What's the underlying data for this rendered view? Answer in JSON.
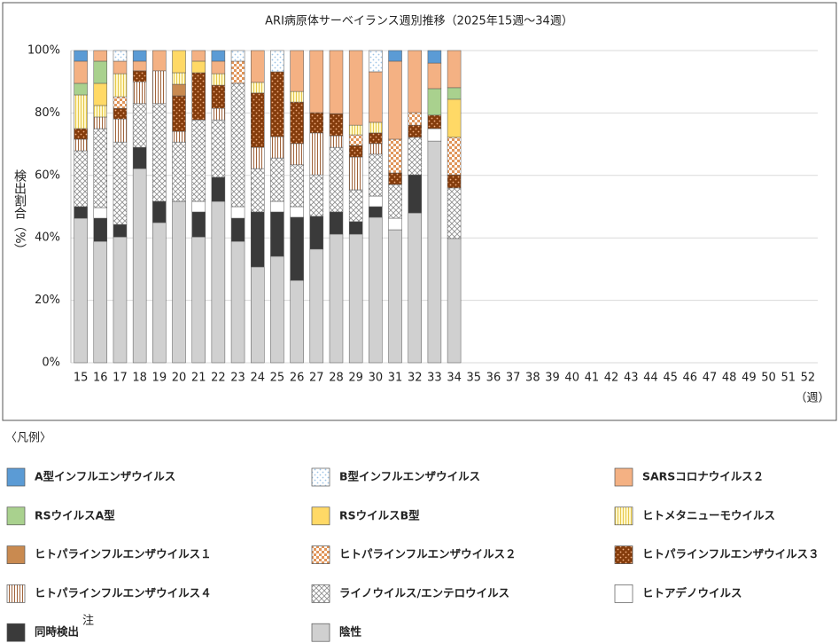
{
  "chart_data": {
    "type": "stacked_bar",
    "title": "ARI病原体サーベイランス週別推移（2025年15週～34週）",
    "y_label": "検出割合（%）",
    "x_label": "（週）",
    "legend_title": "〈凡例〉",
    "co_detection_note": "注",
    "categories": [
      "15",
      "16",
      "17",
      "18",
      "19",
      "20",
      "21",
      "22",
      "23",
      "24",
      "25",
      "26",
      "27",
      "28",
      "29",
      "30",
      "31",
      "32",
      "33",
      "34",
      "35",
      "36",
      "37",
      "38",
      "39",
      "40",
      "41",
      "42",
      "43",
      "44",
      "45",
      "46",
      "47",
      "48",
      "49",
      "50",
      "51",
      "52"
    ],
    "ylim": [
      0,
      100
    ],
    "yticks": [
      {
        "value": 0,
        "label": "0%"
      },
      {
        "value": 20,
        "label": "20%"
      },
      {
        "value": 40,
        "label": "40%"
      },
      {
        "value": 60,
        "label": "60%"
      },
      {
        "value": 80,
        "label": "80%"
      },
      {
        "value": 100,
        "label": "100%"
      }
    ],
    "grid": true,
    "series": [
      {
        "name": "A型インフルエンザウイルス",
        "color": "#5b9bd5",
        "pattern": "solid",
        "values": [
          3.4,
          0,
          0,
          3.4,
          0,
          0,
          0,
          3.4,
          0,
          0,
          0,
          0,
          0,
          0,
          0,
          0,
          3.4,
          0,
          4,
          0,
          null,
          null,
          null,
          null,
          null,
          null,
          null,
          null,
          null,
          null,
          null,
          null,
          null,
          null,
          null,
          null,
          null,
          null
        ]
      },
      {
        "name": "B型インフルエンザウイルス",
        "color": "#9dc3e6",
        "pattern": "dots",
        "background": "#ffffff",
        "values": [
          0,
          0,
          3.4,
          0,
          0,
          0,
          0,
          0,
          3.4,
          0,
          6.8,
          0,
          0,
          0,
          0,
          6.8,
          0,
          0,
          0,
          0,
          null,
          null,
          null,
          null,
          null,
          null,
          null,
          null,
          null,
          null,
          null,
          null,
          null,
          null,
          null,
          null,
          null,
          null
        ]
      },
      {
        "name": "SARSコロナウイルス２",
        "color": "#f4b183",
        "pattern": "solid",
        "values": [
          7.1,
          3.4,
          4,
          3.1,
          6.5,
          0,
          3.4,
          4,
          0,
          10.2,
          0,
          13.1,
          19.9,
          20.2,
          23.9,
          16.2,
          25,
          19.9,
          8.2,
          11.9,
          null,
          null,
          null,
          null,
          null,
          null,
          null,
          null,
          null,
          null,
          null,
          null,
          null,
          null,
          null,
          null,
          null,
          null
        ]
      },
      {
        "name": "RSウイルスA型",
        "color": "#a9d18e",
        "pattern": "solid",
        "values": [
          3.7,
          7.1,
          0,
          0,
          0,
          0,
          0,
          0,
          0,
          0,
          0,
          0,
          0,
          0,
          0,
          0,
          0,
          0,
          8.5,
          3.7,
          null,
          null,
          null,
          null,
          null,
          null,
          null,
          null,
          null,
          null,
          null,
          null,
          null,
          null,
          null,
          null,
          null,
          null
        ]
      },
      {
        "name": "RSウイルスB型",
        "color": "#ffd966",
        "pattern": "solid",
        "values": [
          0,
          7.1,
          0,
          0,
          0,
          7.1,
          3.7,
          0,
          0,
          0,
          0,
          0,
          0,
          0,
          0,
          0,
          0,
          0,
          0,
          12.2,
          null,
          null,
          null,
          null,
          null,
          null,
          null,
          null,
          null,
          null,
          null,
          null,
          null,
          null,
          null,
          null,
          null,
          null
        ]
      },
      {
        "name": "ヒトメタニューモウイルス",
        "color": "#e6c84a",
        "pattern": "vlines",
        "background": "#fff7cc",
        "values": [
          10.8,
          3.7,
          7.4,
          0,
          0,
          3.7,
          0,
          3.7,
          0,
          3.4,
          0,
          3.4,
          0,
          0,
          3.1,
          3.4,
          0,
          0,
          0,
          0,
          null,
          null,
          null,
          null,
          null,
          null,
          null,
          null,
          null,
          null,
          null,
          null,
          null,
          null,
          null,
          null,
          null,
          null
        ]
      },
      {
        "name": "ヒトパラインフルエンザウイルス１",
        "color": "#c98a50",
        "pattern": "solid",
        "values": [
          0,
          0,
          0,
          0,
          0,
          3.7,
          0,
          0,
          0,
          0,
          0,
          0,
          0,
          0,
          0,
          0,
          0,
          0,
          0,
          0,
          null,
          null,
          null,
          null,
          null,
          null,
          null,
          null,
          null,
          null,
          null,
          null,
          null,
          null,
          null,
          null,
          null,
          null
        ]
      },
      {
        "name": "ヒトパラインフルエンザウイルス２",
        "color": "#e0955a",
        "pattern": "checker",
        "background": "#ffffff",
        "values": [
          0,
          0,
          3.7,
          0,
          0,
          0,
          0,
          0,
          7.1,
          0,
          0,
          0,
          0,
          0,
          3.4,
          0,
          10.8,
          4,
          0,
          12,
          null,
          null,
          null,
          null,
          null,
          null,
          null,
          null,
          null,
          null,
          null,
          null,
          null,
          null,
          null,
          null,
          null,
          null
        ]
      },
      {
        "name": "ヒトパラインフルエンザウイルス３",
        "color": "#f4b183",
        "pattern": "dots",
        "background": "#843c0c",
        "values": [
          3.4,
          0,
          3.4,
          3.5,
          0,
          11.4,
          15.1,
          7.4,
          0,
          17.4,
          20.8,
          13.3,
          6.5,
          7.1,
          3.7,
          3.4,
          3.7,
          3.9,
          4.3,
          4.2,
          null,
          null,
          null,
          null,
          null,
          null,
          null,
          null,
          null,
          null,
          null,
          null,
          null,
          null,
          null,
          null,
          null,
          null
        ]
      },
      {
        "name": "ヒトパラインフルエンザウイルス４",
        "color": "#a0633a",
        "pattern": "vlines",
        "background": "#ffffff",
        "values": [
          3.7,
          3.7,
          7.4,
          7,
          10.5,
          3.4,
          0,
          3.7,
          0,
          6.8,
          6.8,
          6.8,
          13.4,
          3.7,
          10.5,
          3.4,
          0,
          0,
          0,
          0,
          null,
          null,
          null,
          null,
          null,
          null,
          null,
          null,
          null,
          null,
          null,
          null,
          null,
          null,
          null,
          null,
          null,
          null
        ]
      },
      {
        "name": "ライノウイルス/エンテロウイルス",
        "color": "#8c8c8c",
        "pattern": "cross",
        "background": "#ffffff",
        "values": [
          17.9,
          25.3,
          26.4,
          14,
          31.3,
          19,
          26.1,
          18.4,
          39.5,
          13.9,
          13.9,
          13.4,
          13.3,
          20.7,
          10.2,
          13.4,
          10.8,
          12,
          0,
          16.2,
          null,
          null,
          null,
          null,
          null,
          null,
          null,
          null,
          null,
          null,
          null,
          null,
          null,
          null,
          null,
          null,
          null,
          null
        ]
      },
      {
        "name": "ヒトアデノウイルス",
        "color": "#ffffff",
        "pattern": "solid",
        "values": [
          0,
          3.4,
          0,
          0,
          0,
          0,
          3.4,
          0,
          3.7,
          0,
          3.4,
          3.4,
          0,
          0,
          0,
          3.4,
          3.7,
          0,
          4,
          0,
          null,
          null,
          null,
          null,
          null,
          null,
          null,
          null,
          null,
          null,
          null,
          null,
          null,
          null,
          null,
          null,
          null,
          null
        ]
      },
      {
        "name": "同時検出",
        "color": "#3a3a3a",
        "pattern": "solid",
        "values": [
          3.7,
          7.4,
          4,
          6.8,
          6.8,
          0,
          8,
          7.7,
          7.4,
          17.6,
          14.2,
          20.2,
          10.5,
          7.1,
          4,
          3.4,
          0,
          12.2,
          0,
          0,
          null,
          null,
          null,
          null,
          null,
          null,
          null,
          null,
          null,
          null,
          null,
          null,
          null,
          null,
          null,
          null,
          null,
          null
        ]
      },
      {
        "name": "陰性",
        "color": "#d0d0d0",
        "pattern": "solid",
        "values": [
          46.3,
          38.9,
          40.3,
          62.2,
          44.9,
          51.7,
          40.3,
          51.7,
          38.9,
          30.7,
          34.1,
          26.4,
          36.4,
          41.2,
          41.2,
          46.6,
          42.6,
          48,
          71,
          39.8,
          null,
          null,
          null,
          null,
          null,
          null,
          null,
          null,
          null,
          null,
          null,
          null,
          null,
          null,
          null,
          null,
          null,
          null
        ]
      }
    ]
  }
}
